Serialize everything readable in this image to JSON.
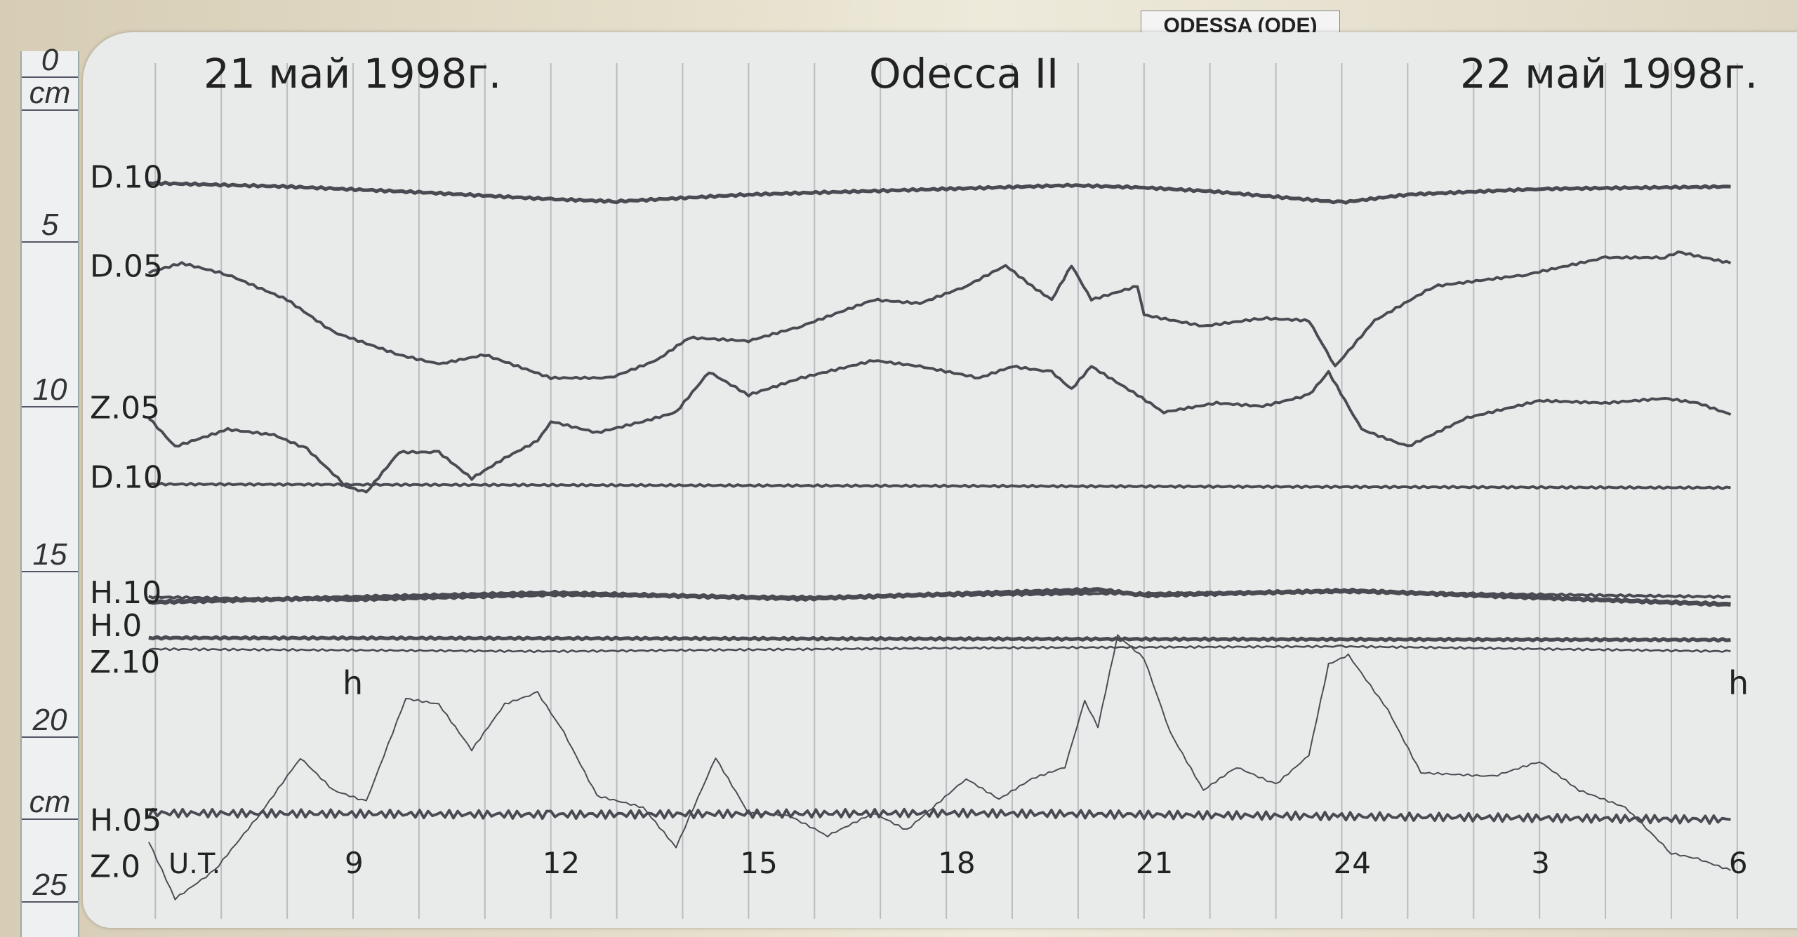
{
  "station_tag": "ODESSA (ODE)",
  "ruler": {
    "labels": [
      {
        "t": "0",
        "cm": 0
      },
      {
        "t": "cm",
        "cm": 1
      },
      {
        "t": "5",
        "cm": 5
      },
      {
        "t": "10",
        "cm": 10
      },
      {
        "t": "15",
        "cm": 15
      },
      {
        "t": "20",
        "cm": 20
      },
      {
        "t": "cm",
        "cm": 22.5
      },
      {
        "t": "25",
        "cm": 25
      }
    ]
  },
  "chart_data": {
    "type": "line",
    "title": "Odecca II",
    "date_left": "21 май 1998г.",
    "date_right": "22 май 1998г.",
    "xlabel": "U.T.",
    "x_ticks": [
      {
        "h": 9,
        "label": "9"
      },
      {
        "h": 12,
        "label": "12"
      },
      {
        "h": 15,
        "label": "15"
      },
      {
        "h": 18,
        "label": "18"
      },
      {
        "h": 21,
        "label": "21"
      },
      {
        "h": 24,
        "label": "24"
      },
      {
        "h": 27,
        "label": "3"
      },
      {
        "h": 30,
        "label": "6"
      }
    ],
    "xlim": [
      6,
      30
    ],
    "ylim_cm": [
      0,
      25
    ],
    "grid": "vertical hourly",
    "trace_color": "#4a4a52",
    "hour_marks": [
      "h",
      "h"
    ],
    "trace_labels": [
      {
        "t": "D.10",
        "cm": 3.2
      },
      {
        "t": "D.05",
        "cm": 5.9
      },
      {
        "t": "Z.05",
        "cm": 10.2
      },
      {
        "t": "D.10",
        "cm": 12.3
      },
      {
        "t": "H.10",
        "cm": 15.8
      },
      {
        "t": "H.0",
        "cm": 16.8
      },
      {
        "t": "Z.10",
        "cm": 17.9
      },
      {
        "t": "H.05",
        "cm": 22.7
      },
      {
        "t": "Z.0",
        "cm": 24.1
      }
    ],
    "series": [
      {
        "name": "D.10",
        "width": 4,
        "points": [
          [
            5.9,
            3.4
          ],
          [
            8,
            3.51
          ],
          [
            10,
            3.68
          ],
          [
            12,
            3.89
          ],
          [
            13,
            3.96
          ],
          [
            15,
            3.75
          ],
          [
            18,
            3.58
          ],
          [
            19.9,
            3.47
          ],
          [
            21,
            3.54
          ],
          [
            22,
            3.65
          ],
          [
            24,
            3.99
          ],
          [
            25,
            3.75
          ],
          [
            27,
            3.58
          ],
          [
            29.9,
            3.51
          ]
        ]
      },
      {
        "name": "D.05",
        "width": 3,
        "points": [
          [
            5.9,
            6.11
          ],
          [
            6.4,
            5.83
          ],
          [
            7.1,
            6.18
          ],
          [
            8.0,
            6.94
          ],
          [
            8.7,
            7.92
          ],
          [
            9.7,
            8.61
          ],
          [
            10.3,
            8.89
          ],
          [
            11.0,
            8.61
          ],
          [
            12.0,
            9.31
          ],
          [
            12.9,
            9.31
          ],
          [
            13.6,
            8.78
          ],
          [
            14.1,
            8.09
          ],
          [
            15.0,
            8.19
          ],
          [
            15.8,
            7.74
          ],
          [
            16.9,
            6.94
          ],
          [
            17.6,
            7.05
          ],
          [
            18.3,
            6.53
          ],
          [
            18.9,
            5.9
          ],
          [
            19.3,
            6.53
          ],
          [
            19.6,
            6.94
          ],
          [
            19.9,
            5.9
          ],
          [
            20.2,
            6.94
          ],
          [
            20.9,
            6.53
          ],
          [
            21.0,
            7.4
          ],
          [
            21.9,
            7.74
          ],
          [
            22.8,
            7.5
          ],
          [
            23.5,
            7.57
          ],
          [
            23.9,
            8.96
          ],
          [
            24.5,
            7.57
          ],
          [
            25.4,
            6.53
          ],
          [
            26.8,
            6.18
          ],
          [
            28.0,
            5.66
          ],
          [
            28.9,
            5.66
          ],
          [
            29.1,
            5.49
          ],
          [
            29.9,
            5.83
          ]
        ]
      },
      {
        "name": "Z.05",
        "width": 3,
        "points": [
          [
            5.9,
            10.52
          ],
          [
            6.3,
            11.39
          ],
          [
            7.1,
            10.87
          ],
          [
            7.8,
            11.04
          ],
          [
            8.3,
            11.46
          ],
          [
            8.9,
            12.6
          ],
          [
            9.2,
            12.78
          ],
          [
            9.7,
            11.56
          ],
          [
            10.3,
            11.56
          ],
          [
            10.8,
            12.36
          ],
          [
            11.3,
            11.74
          ],
          [
            11.8,
            11.22
          ],
          [
            12.0,
            10.63
          ],
          [
            12.7,
            10.97
          ],
          [
            13.4,
            10.63
          ],
          [
            13.9,
            10.35
          ],
          [
            14.4,
            9.13
          ],
          [
            15.0,
            9.83
          ],
          [
            15.8,
            9.31
          ],
          [
            16.9,
            8.78
          ],
          [
            17.6,
            8.96
          ],
          [
            18.5,
            9.31
          ],
          [
            19.0,
            8.96
          ],
          [
            19.6,
            9.13
          ],
          [
            19.9,
            9.65
          ],
          [
            20.2,
            8.96
          ],
          [
            20.9,
            9.83
          ],
          [
            21.3,
            10.35
          ],
          [
            22.1,
            10.07
          ],
          [
            22.8,
            10.17
          ],
          [
            23.5,
            9.83
          ],
          [
            23.8,
            9.13
          ],
          [
            24.3,
            10.87
          ],
          [
            25.0,
            11.39
          ],
          [
            25.9,
            10.52
          ],
          [
            27.0,
            10.0
          ],
          [
            28.0,
            10.07
          ],
          [
            28.9,
            9.93
          ],
          [
            29.4,
            10.07
          ],
          [
            29.9,
            10.42
          ]
        ]
      },
      {
        "name": "D.10 base",
        "width": 3,
        "points": [
          [
            5.9,
            12.53
          ],
          [
            29.9,
            12.64
          ]
        ]
      },
      {
        "name": "H.10",
        "width": 5,
        "points": [
          [
            5.9,
            16.11
          ],
          [
            8.9,
            15.97
          ],
          [
            12,
            15.83
          ],
          [
            15.8,
            16.0
          ],
          [
            20.3,
            15.73
          ],
          [
            21,
            15.9
          ],
          [
            24.1,
            15.76
          ],
          [
            29.9,
            16.18
          ]
        ]
      },
      {
        "name": "H.10b",
        "width": 3,
        "points": [
          [
            5.9,
            15.95
          ],
          [
            9,
            16.05
          ],
          [
            12,
            15.9
          ],
          [
            16,
            15.95
          ],
          [
            20.3,
            15.85
          ],
          [
            24,
            15.8
          ],
          [
            29.9,
            15.95
          ]
        ]
      },
      {
        "name": "H.0",
        "width": 4,
        "points": [
          [
            5.9,
            17.19
          ],
          [
            29.9,
            17.25
          ]
        ]
      },
      {
        "name": "Z.10",
        "width": 2,
        "points": [
          [
            5.9,
            17.53
          ],
          [
            12,
            17.6
          ],
          [
            18,
            17.5
          ],
          [
            24,
            17.45
          ],
          [
            29.9,
            17.6
          ]
        ]
      },
      {
        "name": "H.05",
        "width": 3,
        "noisy": true,
        "points": [
          [
            5.9,
            22.5
          ],
          [
            12,
            22.55
          ],
          [
            18,
            22.5
          ],
          [
            24,
            22.6
          ],
          [
            29.9,
            22.7
          ]
        ]
      },
      {
        "name": "Z.0",
        "width": 1.5,
        "points": [
          [
            5.9,
            23.37
          ],
          [
            6.3,
            25.1
          ],
          [
            6.9,
            24.24
          ],
          [
            7.6,
            22.5
          ],
          [
            8.2,
            20.83
          ],
          [
            8.7,
            21.81
          ],
          [
            9.2,
            22.15
          ],
          [
            9.8,
            19.03
          ],
          [
            10.3,
            19.2
          ],
          [
            10.8,
            20.59
          ],
          [
            11.3,
            19.2
          ],
          [
            11.8,
            18.85
          ],
          [
            12.2,
            20.07
          ],
          [
            12.7,
            21.98
          ],
          [
            13.4,
            22.33
          ],
          [
            13.9,
            23.54
          ],
          [
            14.5,
            20.83
          ],
          [
            15.0,
            22.5
          ],
          [
            15.6,
            22.57
          ],
          [
            16.2,
            23.19
          ],
          [
            16.9,
            22.5
          ],
          [
            17.4,
            23.02
          ],
          [
            18.3,
            21.46
          ],
          [
            18.8,
            22.08
          ],
          [
            19.3,
            21.46
          ],
          [
            19.8,
            21.11
          ],
          [
            20.1,
            19.1
          ],
          [
            20.3,
            19.9
          ],
          [
            20.6,
            17.12
          ],
          [
            21.0,
            17.81
          ],
          [
            21.4,
            20.07
          ],
          [
            21.9,
            21.81
          ],
          [
            22.4,
            21.11
          ],
          [
            23.0,
            21.63
          ],
          [
            23.5,
            20.76
          ],
          [
            23.8,
            17.99
          ],
          [
            24.1,
            17.71
          ],
          [
            24.7,
            19.38
          ],
          [
            25.2,
            21.28
          ],
          [
            26.3,
            21.39
          ],
          [
            27.0,
            20.94
          ],
          [
            27.6,
            21.81
          ],
          [
            28.3,
            22.33
          ],
          [
            29.0,
            23.72
          ],
          [
            29.4,
            23.89
          ],
          [
            29.9,
            24.24
          ]
        ]
      }
    ]
  }
}
